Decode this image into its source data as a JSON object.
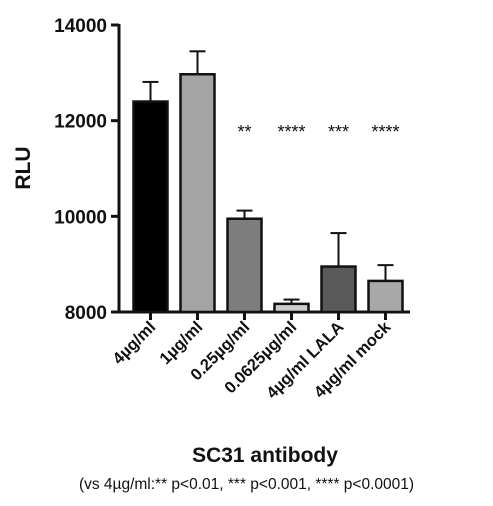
{
  "chart_data": {
    "type": "bar",
    "xlabel": "SC31 antibody",
    "ylabel": "RLU",
    "ylim": [
      8000,
      14000
    ],
    "yticks": [
      8000,
      10000,
      12000,
      14000
    ],
    "categories": [
      "4µg/ml",
      "1µg/ml",
      "0.25µg/ml",
      "0.0625µg/ml",
      "4µg/ml LALA",
      "4µg/ml mock"
    ],
    "values": [
      12400,
      12970,
      9950,
      8170,
      8950,
      8650
    ],
    "errors": [
      410,
      480,
      170,
      90,
      700,
      330
    ],
    "colors": [
      "#000000",
      "#a4a4a4",
      "#7d7d7d",
      "#cccccc",
      "#595959",
      "#a8a8a8"
    ],
    "significance": [
      "",
      "",
      "**",
      "****",
      "***",
      "****"
    ],
    "grid": false
  },
  "footnote": "(vs 4µg/ml:** p<0.01, *** p<0.001, **** p<0.0001)"
}
